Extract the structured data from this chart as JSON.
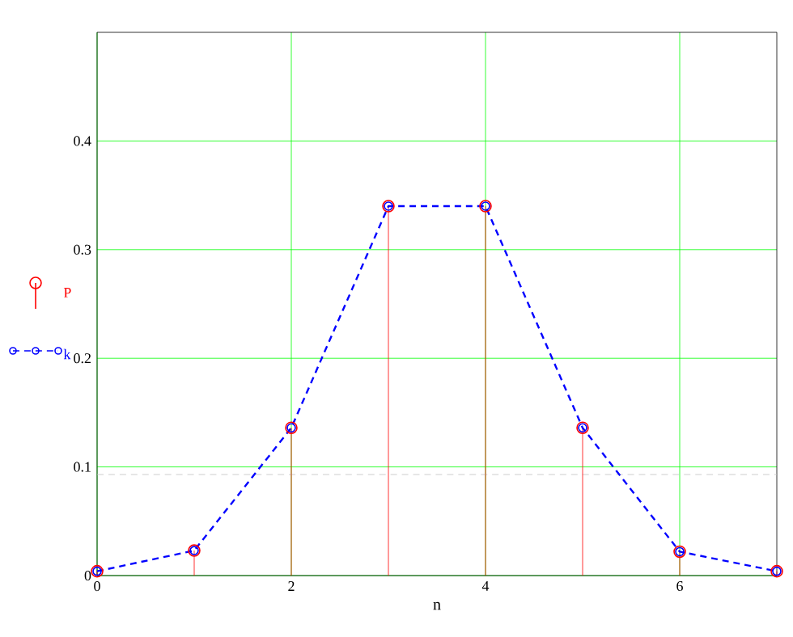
{
  "chart_data": {
    "type": "line",
    "xlabel": "n",
    "x": [
      0,
      1,
      2,
      3,
      4,
      5,
      6,
      7
    ],
    "series": [
      {
        "name": "P",
        "type": "lollipop",
        "color": "#ff0000",
        "marker": "circle",
        "values": [
          0.004,
          0.023,
          0.136,
          0.34,
          0.34,
          0.136,
          0.022,
          0.004
        ]
      },
      {
        "name": "k",
        "color": "#0000ff",
        "marker": "circle",
        "line_style": "dashed",
        "values": [
          0.004,
          0.023,
          0.136,
          0.34,
          0.34,
          0.136,
          0.022,
          0.004
        ]
      }
    ],
    "xlim": [
      0,
      7
    ],
    "ylim": [
      0,
      0.5
    ],
    "xticks": [
      0,
      2,
      4,
      6
    ],
    "yticks": [
      0,
      0.1,
      0.2,
      0.3,
      0.4
    ],
    "grid": true,
    "legend": "left",
    "ref_lines": [
      {
        "axis": "y",
        "value": 0.093,
        "color": "#c0c0c0",
        "line_style": "dashed"
      }
    ]
  }
}
